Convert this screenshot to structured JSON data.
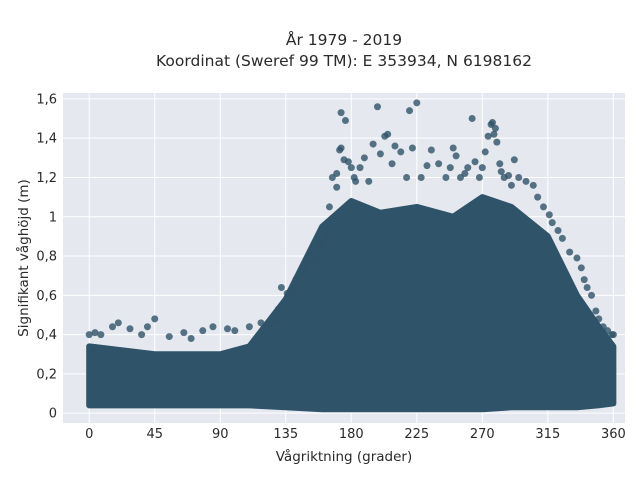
{
  "colors": {
    "marker": "#2f5368",
    "plot_background": "#e5e8ef",
    "grid": "#ffffff",
    "text": "#2a2a2a"
  },
  "chart_data": {
    "type": "scatter",
    "title": "År 1979 - 2019",
    "subtitle": "Koordinat (Sweref 99 TM): E 353934, N 6198162",
    "xlabel": "Vågriktning (grader)",
    "ylabel": "Signifikant våghöjd (m)",
    "xlim": [
      -18,
      368
    ],
    "ylim": [
      -0.05,
      1.63
    ],
    "x_ticks": [
      0,
      45,
      90,
      135,
      180,
      225,
      270,
      315,
      360
    ],
    "y_ticks": [
      0,
      0.2,
      0.4,
      0.6,
      0.8,
      1,
      1.2,
      1.4,
      1.6
    ],
    "y_tick_labels": [
      "0",
      "0,2",
      "0,4",
      "0,6",
      "0,8",
      "1",
      "1,2",
      "1,4",
      "1,6"
    ],
    "grid": true,
    "legend": "none",
    "envelope": {
      "x": [
        0,
        45,
        90,
        110,
        135,
        160,
        180,
        200,
        225,
        250,
        270,
        290,
        315,
        335,
        350,
        360
      ],
      "y_min": [
        0.04,
        0.04,
        0.04,
        0.04,
        0.03,
        0.02,
        0.02,
        0.02,
        0.02,
        0.02,
        0.02,
        0.03,
        0.03,
        0.03,
        0.04,
        0.05
      ],
      "y_max": [
        0.34,
        0.3,
        0.3,
        0.34,
        0.58,
        0.95,
        1.08,
        1.02,
        1.05,
        1.0,
        1.1,
        1.05,
        0.9,
        0.6,
        0.44,
        0.34
      ]
    },
    "series": [
      {
        "points": [
          [
            0,
            0.4
          ],
          [
            4,
            0.41
          ],
          [
            8,
            0.4
          ],
          [
            16,
            0.44
          ],
          [
            20,
            0.46
          ],
          [
            28,
            0.43
          ],
          [
            36,
            0.4
          ],
          [
            40,
            0.44
          ],
          [
            45,
            0.48
          ],
          [
            55,
            0.39
          ],
          [
            65,
            0.41
          ],
          [
            70,
            0.38
          ],
          [
            78,
            0.42
          ],
          [
            85,
            0.44
          ],
          [
            95,
            0.43
          ],
          [
            100,
            0.42
          ],
          [
            110,
            0.44
          ],
          [
            118,
            0.46
          ],
          [
            123,
            0.45
          ],
          [
            128,
            0.47
          ],
          [
            130,
            0.53
          ],
          [
            132,
            0.64
          ],
          [
            136,
            0.61
          ],
          [
            140,
            0.63
          ],
          [
            142,
            0.68
          ],
          [
            148,
            0.72
          ],
          [
            150,
            0.76
          ],
          [
            155,
            0.78
          ],
          [
            158,
            0.84
          ],
          [
            160,
            0.86
          ],
          [
            163,
            0.9
          ],
          [
            165,
            1.05
          ],
          [
            167,
            1.2
          ],
          [
            170,
            1.22
          ],
          [
            170,
            1.15
          ],
          [
            172,
            1.34
          ],
          [
            173,
            1.35
          ],
          [
            173,
            1.53
          ],
          [
            175,
            1.29
          ],
          [
            176,
            1.49
          ],
          [
            178,
            1.28
          ],
          [
            180,
            1.25
          ],
          [
            182,
            1.2
          ],
          [
            183,
            1.18
          ],
          [
            186,
            1.25
          ],
          [
            189,
            1.3
          ],
          [
            192,
            1.18
          ],
          [
            195,
            1.37
          ],
          [
            198,
            1.56
          ],
          [
            200,
            1.32
          ],
          [
            203,
            1.41
          ],
          [
            205,
            1.42
          ],
          [
            208,
            1.27
          ],
          [
            210,
            1.36
          ],
          [
            214,
            1.33
          ],
          [
            218,
            1.2
          ],
          [
            220,
            1.54
          ],
          [
            222,
            1.35
          ],
          [
            225,
            1.58
          ],
          [
            228,
            1.2
          ],
          [
            232,
            1.26
          ],
          [
            235,
            1.34
          ],
          [
            240,
            1.27
          ],
          [
            245,
            1.2
          ],
          [
            248,
            1.25
          ],
          [
            250,
            1.35
          ],
          [
            252,
            1.31
          ],
          [
            255,
            1.2
          ],
          [
            258,
            1.22
          ],
          [
            260,
            1.25
          ],
          [
            263,
            1.5
          ],
          [
            265,
            1.28
          ],
          [
            268,
            1.2
          ],
          [
            270,
            1.25
          ],
          [
            272,
            1.33
          ],
          [
            274,
            1.41
          ],
          [
            276,
            1.47
          ],
          [
            277,
            1.48
          ],
          [
            278,
            1.42
          ],
          [
            279,
            1.45
          ],
          [
            280,
            1.38
          ],
          [
            282,
            1.27
          ],
          [
            283,
            1.23
          ],
          [
            285,
            1.2
          ],
          [
            288,
            1.21
          ],
          [
            290,
            1.16
          ],
          [
            292,
            1.29
          ],
          [
            295,
            1.2
          ],
          [
            300,
            1.18
          ],
          [
            305,
            1.16
          ],
          [
            308,
            1.1
          ],
          [
            312,
            1.05
          ],
          [
            316,
            1.01
          ],
          [
            318,
            0.97
          ],
          [
            322,
            0.93
          ],
          [
            325,
            0.89
          ],
          [
            330,
            0.82
          ],
          [
            335,
            0.79
          ],
          [
            338,
            0.74
          ],
          [
            340,
            0.68
          ],
          [
            342,
            0.64
          ],
          [
            345,
            0.6
          ],
          [
            348,
            0.52
          ],
          [
            350,
            0.48
          ],
          [
            353,
            0.44
          ],
          [
            356,
            0.42
          ],
          [
            359,
            0.4
          ],
          [
            360,
            0.4
          ]
        ]
      }
    ]
  }
}
